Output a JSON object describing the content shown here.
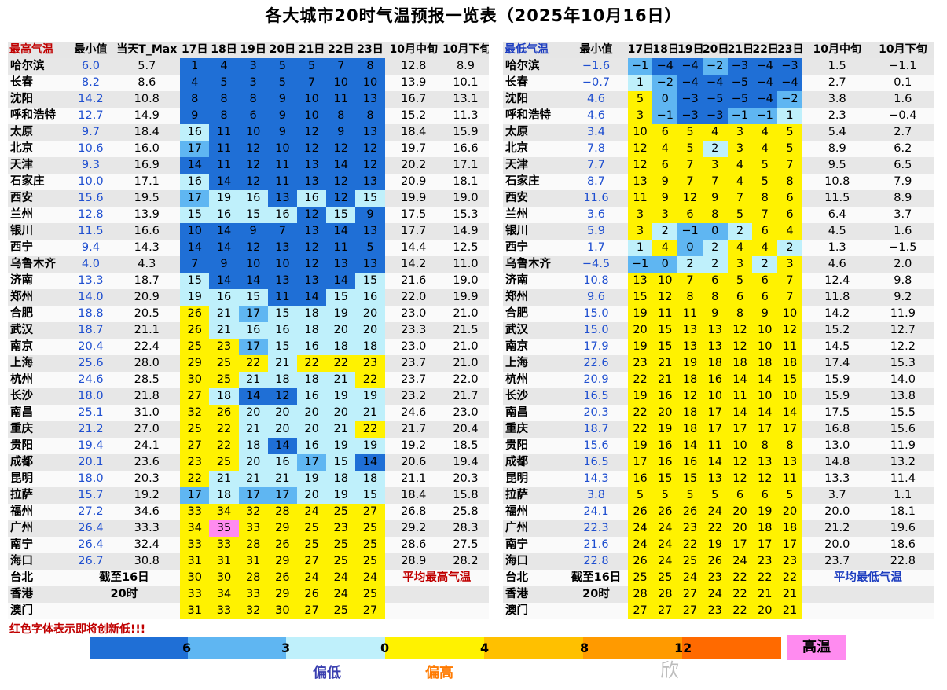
{
  "title": "各大城市20时气温预报一览表（2025年10月16日）",
  "chart_data": {
    "type": "table",
    "title": "各大城市20时气温预报一览表（2025年10月16日）",
    "max_table": {
      "headers": [
        "最高气温",
        "最小值",
        "当天T_Max",
        "17日",
        "18日",
        "19日",
        "20日",
        "21日",
        "22日",
        "23日",
        "10月中旬",
        "10月下旬"
      ],
      "rows": [
        {
          "city": "哈尔滨",
          "min": "6.0",
          "today": "5.7",
          "d": [
            1,
            4,
            3,
            5,
            5,
            7,
            8
          ],
          "mid": "12.8",
          "late": "8.9"
        },
        {
          "city": "长春",
          "min": "8.2",
          "today": "8.6",
          "d": [
            4,
            5,
            3,
            5,
            7,
            10,
            10
          ],
          "mid": "13.9",
          "late": "10.1"
        },
        {
          "city": "沈阳",
          "min": "14.2",
          "today": "10.8",
          "d": [
            8,
            8,
            8,
            9,
            10,
            11,
            13
          ],
          "mid": "16.7",
          "late": "13.1"
        },
        {
          "city": "呼和浩特",
          "min": "12.7",
          "today": "14.9",
          "d": [
            9,
            8,
            6,
            9,
            10,
            8,
            8
          ],
          "mid": "15.2",
          "late": "11.3"
        },
        {
          "city": "太原",
          "min": "9.7",
          "today": "18.4",
          "d": [
            16,
            11,
            10,
            9,
            12,
            9,
            13
          ],
          "mid": "18.4",
          "late": "15.9"
        },
        {
          "city": "北京",
          "min": "10.6",
          "today": "16.0",
          "d": [
            17,
            11,
            12,
            10,
            12,
            12,
            12
          ],
          "mid": "19.7",
          "late": "16.6"
        },
        {
          "city": "天津",
          "min": "9.3",
          "today": "16.9",
          "d": [
            14,
            11,
            12,
            11,
            13,
            14,
            12
          ],
          "mid": "20.2",
          "late": "17.1"
        },
        {
          "city": "石家庄",
          "min": "10.0",
          "today": "17.1",
          "d": [
            16,
            14,
            12,
            11,
            13,
            12,
            13
          ],
          "mid": "20.9",
          "late": "18.1"
        },
        {
          "city": "西安",
          "min": "15.6",
          "today": "19.5",
          "d": [
            17,
            19,
            16,
            13,
            16,
            12,
            15
          ],
          "mid": "19.9",
          "late": "19.0"
        },
        {
          "city": "兰州",
          "min": "12.8",
          "today": "13.9",
          "d": [
            15,
            16,
            15,
            16,
            12,
            15,
            9
          ],
          "mid": "17.5",
          "late": "15.3"
        },
        {
          "city": "银川",
          "min": "11.5",
          "today": "16.6",
          "d": [
            10,
            14,
            9,
            7,
            13,
            14,
            13
          ],
          "mid": "17.7",
          "late": "14.9"
        },
        {
          "city": "西宁",
          "min": "9.4",
          "today": "14.3",
          "d": [
            14,
            14,
            12,
            13,
            12,
            11,
            5
          ],
          "mid": "14.4",
          "late": "12.5"
        },
        {
          "city": "乌鲁木齐",
          "min": "4.0",
          "today": "4.3",
          "d": [
            7,
            9,
            10,
            10,
            12,
            13,
            13
          ],
          "mid": "14.2",
          "late": "11.0"
        },
        {
          "city": "济南",
          "min": "13.3",
          "today": "18.7",
          "d": [
            15,
            14,
            14,
            13,
            13,
            14,
            15
          ],
          "mid": "21.6",
          "late": "19.0"
        },
        {
          "city": "郑州",
          "min": "14.0",
          "today": "20.9",
          "d": [
            19,
            16,
            15,
            11,
            14,
            15,
            16
          ],
          "mid": "22.0",
          "late": "19.9"
        },
        {
          "city": "合肥",
          "min": "18.8",
          "today": "20.5",
          "d": [
            26,
            21,
            17,
            15,
            18,
            19,
            20
          ],
          "mid": "23.0",
          "late": "21.0"
        },
        {
          "city": "武汉",
          "min": "18.7",
          "today": "21.1",
          "d": [
            26,
            21,
            16,
            16,
            18,
            20,
            20
          ],
          "mid": "23.3",
          "late": "21.5"
        },
        {
          "city": "南京",
          "min": "20.4",
          "today": "22.4",
          "d": [
            25,
            23,
            17,
            15,
            16,
            18,
            18
          ],
          "mid": "23.0",
          "late": "21.0"
        },
        {
          "city": "上海",
          "min": "25.6",
          "today": "28.0",
          "d": [
            29,
            25,
            22,
            21,
            22,
            22,
            23
          ],
          "mid": "23.7",
          "late": "21.0"
        },
        {
          "city": "杭州",
          "min": "24.6",
          "today": "28.5",
          "d": [
            30,
            25,
            21,
            18,
            18,
            21,
            22
          ],
          "mid": "23.7",
          "late": "22.0"
        },
        {
          "city": "长沙",
          "min": "18.0",
          "today": "21.8",
          "d": [
            27,
            18,
            14,
            12,
            16,
            19,
            19
          ],
          "mid": "23.2",
          "late": "21.7"
        },
        {
          "city": "南昌",
          "min": "25.1",
          "today": "31.0",
          "d": [
            32,
            26,
            20,
            20,
            20,
            20,
            21
          ],
          "mid": "24.6",
          "late": "23.0"
        },
        {
          "city": "重庆",
          "min": "21.2",
          "today": "27.0",
          "d": [
            25,
            22,
            21,
            20,
            20,
            21,
            22
          ],
          "mid": "21.7",
          "late": "20.4"
        },
        {
          "city": "贵阳",
          "min": "19.4",
          "today": "24.1",
          "d": [
            27,
            22,
            18,
            14,
            16,
            19,
            19
          ],
          "mid": "19.2",
          "late": "18.5"
        },
        {
          "city": "成都",
          "min": "20.1",
          "today": "23.6",
          "d": [
            23,
            25,
            20,
            16,
            17,
            15,
            14
          ],
          "mid": "20.6",
          "late": "19.4"
        },
        {
          "city": "昆明",
          "min": "18.0",
          "today": "20.3",
          "d": [
            22,
            21,
            21,
            21,
            19,
            18,
            18
          ],
          "mid": "21.1",
          "late": "20.3"
        },
        {
          "city": "拉萨",
          "min": "15.7",
          "today": "19.2",
          "d": [
            17,
            18,
            17,
            17,
            20,
            19,
            15
          ],
          "mid": "18.4",
          "late": "15.8"
        },
        {
          "city": "福州",
          "min": "27.2",
          "today": "34.6",
          "d": [
            33,
            34,
            32,
            28,
            24,
            25,
            27
          ],
          "mid": "26.8",
          "late": "25.8"
        },
        {
          "city": "广州",
          "min": "26.4",
          "today": "33.3",
          "d": [
            34,
            35,
            33,
            29,
            25,
            23,
            25
          ],
          "mid": "29.2",
          "late": "28.3"
        },
        {
          "city": "南宁",
          "min": "26.4",
          "today": "32.4",
          "d": [
            33,
            33,
            28,
            26,
            25,
            25,
            25
          ],
          "mid": "28.6",
          "late": "27.5"
        },
        {
          "city": "海口",
          "min": "26.7",
          "today": "30.8",
          "d": [
            31,
            31,
            31,
            29,
            27,
            25,
            25
          ],
          "mid": "28.9",
          "late": "28.2"
        },
        {
          "city": "台北",
          "min": "",
          "today": "",
          "d": [
            30,
            30,
            28,
            26,
            24,
            24,
            24
          ],
          "mid": "",
          "late": ""
        },
        {
          "city": "香港",
          "min": "",
          "today": "",
          "d": [
            33,
            34,
            33,
            29,
            26,
            24,
            25
          ],
          "mid": "",
          "late": ""
        },
        {
          "city": "澳门",
          "min": "",
          "today": "",
          "d": [
            31,
            33,
            32,
            30,
            27,
            25,
            27
          ],
          "mid": "",
          "late": ""
        }
      ]
    },
    "min_table": {
      "headers": [
        "最低气温",
        "最小值",
        "17日",
        "18日",
        "19日",
        "20日",
        "21日",
        "22日",
        "23日",
        "10月中旬",
        "10月下旬"
      ],
      "rows": [
        {
          "city": "哈尔滨",
          "min": "-1.6",
          "d": [
            -1,
            -4,
            -4,
            -2,
            -3,
            -4,
            -3
          ],
          "mid": "1.5",
          "late": "-1.1"
        },
        {
          "city": "长春",
          "min": "-0.7",
          "d": [
            1,
            -2,
            -4,
            -4,
            -5,
            -4,
            -4
          ],
          "mid": "2.7",
          "late": "0.1"
        },
        {
          "city": "沈阳",
          "min": "4.6",
          "d": [
            5,
            0,
            -3,
            -5,
            -5,
            -4,
            -2
          ],
          "mid": "3.8",
          "late": "1.6"
        },
        {
          "city": "呼和浩特",
          "min": "4.6",
          "d": [
            3,
            -1,
            -3,
            -3,
            -1,
            -1,
            1
          ],
          "mid": "2.3",
          "late": "-0.4"
        },
        {
          "city": "太原",
          "min": "3.4",
          "d": [
            10,
            6,
            5,
            4,
            3,
            4,
            5
          ],
          "mid": "5.4",
          "late": "2.7"
        },
        {
          "city": "北京",
          "min": "7.8",
          "d": [
            12,
            4,
            5,
            2,
            3,
            4,
            5
          ],
          "mid": "8.9",
          "late": "6.2"
        },
        {
          "city": "天津",
          "min": "7.7",
          "d": [
            12,
            6,
            7,
            3,
            4,
            5,
            7
          ],
          "mid": "9.5",
          "late": "6.5"
        },
        {
          "city": "石家庄",
          "min": "8.7",
          "d": [
            13,
            9,
            7,
            7,
            4,
            5,
            8
          ],
          "mid": "10.8",
          "late": "7.9"
        },
        {
          "city": "西安",
          "min": "11.6",
          "d": [
            11,
            9,
            12,
            9,
            7,
            8,
            6
          ],
          "mid": "11.5",
          "late": "8.9"
        },
        {
          "city": "兰州",
          "min": "3.6",
          "d": [
            3,
            3,
            6,
            8,
            5,
            7,
            6
          ],
          "mid": "6.4",
          "late": "3.7"
        },
        {
          "city": "银川",
          "min": "5.9",
          "d": [
            3,
            2,
            -1,
            0,
            2,
            6,
            4
          ],
          "mid": "4.5",
          "late": "1.6"
        },
        {
          "city": "西宁",
          "min": "1.7",
          "d": [
            1,
            4,
            0,
            2,
            4,
            4,
            2
          ],
          "mid": "1.3",
          "late": "-1.5"
        },
        {
          "city": "乌鲁木齐",
          "min": "-4.5",
          "d": [
            -1,
            0,
            2,
            2,
            3,
            2,
            3
          ],
          "mid": "4.6",
          "late": "2.0"
        },
        {
          "city": "济南",
          "min": "10.8",
          "d": [
            13,
            10,
            7,
            6,
            5,
            6,
            7
          ],
          "mid": "12.4",
          "late": "9.8"
        },
        {
          "city": "郑州",
          "min": "9.6",
          "d": [
            15,
            12,
            8,
            8,
            6,
            6,
            7
          ],
          "mid": "11.8",
          "late": "9.2"
        },
        {
          "city": "合肥",
          "min": "15.0",
          "d": [
            19,
            11,
            11,
            9,
            8,
            9,
            10
          ],
          "mid": "14.2",
          "late": "11.9"
        },
        {
          "city": "武汉",
          "min": "15.0",
          "d": [
            20,
            15,
            13,
            13,
            12,
            10,
            12
          ],
          "mid": "15.2",
          "late": "12.7"
        },
        {
          "city": "南京",
          "min": "17.9",
          "d": [
            19,
            15,
            13,
            13,
            12,
            10,
            11
          ],
          "mid": "14.5",
          "late": "12.2"
        },
        {
          "city": "上海",
          "min": "22.6",
          "d": [
            23,
            21,
            19,
            18,
            18,
            18,
            18
          ],
          "mid": "17.4",
          "late": "15.3"
        },
        {
          "city": "杭州",
          "min": "20.9",
          "d": [
            22,
            21,
            18,
            16,
            14,
            14,
            15
          ],
          "mid": "15.9",
          "late": "14.0"
        },
        {
          "city": "长沙",
          "min": "16.5",
          "d": [
            19,
            16,
            12,
            10,
            11,
            10,
            10
          ],
          "mid": "15.9",
          "late": "13.8"
        },
        {
          "city": "南昌",
          "min": "20.3",
          "d": [
            22,
            20,
            18,
            17,
            14,
            14,
            14
          ],
          "mid": "17.5",
          "late": "15.5"
        },
        {
          "city": "重庆",
          "min": "18.7",
          "d": [
            22,
            19,
            18,
            17,
            17,
            17,
            17
          ],
          "mid": "16.8",
          "late": "15.6"
        },
        {
          "city": "贵阳",
          "min": "15.6",
          "d": [
            19,
            16,
            14,
            11,
            10,
            8,
            8
          ],
          "mid": "13.0",
          "late": "11.9"
        },
        {
          "city": "成都",
          "min": "16.5",
          "d": [
            17,
            16,
            16,
            14,
            12,
            13,
            13
          ],
          "mid": "14.8",
          "late": "13.2"
        },
        {
          "city": "昆明",
          "min": "14.3",
          "d": [
            16,
            15,
            15,
            13,
            12,
            12,
            11
          ],
          "mid": "13.3",
          "late": "11.4"
        },
        {
          "city": "拉萨",
          "min": "3.8",
          "d": [
            5,
            5,
            5,
            5,
            6,
            6,
            5
          ],
          "mid": "3.7",
          "late": "1.1"
        },
        {
          "city": "福州",
          "min": "24.1",
          "d": [
            26,
            26,
            26,
            24,
            20,
            19,
            20
          ],
          "mid": "20.0",
          "late": "18.1"
        },
        {
          "city": "广州",
          "min": "22.3",
          "d": [
            24,
            24,
            23,
            22,
            20,
            18,
            18
          ],
          "mid": "21.2",
          "late": "19.6"
        },
        {
          "city": "南宁",
          "min": "21.6",
          "d": [
            24,
            24,
            22,
            19,
            17,
            17,
            17
          ],
          "mid": "20.0",
          "late": "18.6"
        },
        {
          "city": "海口",
          "min": "22.8",
          "d": [
            26,
            24,
            25,
            26,
            24,
            23,
            23
          ],
          "mid": "23.7",
          "late": "22.8"
        },
        {
          "city": "台北",
          "min": "",
          "d": [
            25,
            25,
            24,
            23,
            22,
            22,
            22
          ],
          "mid": "",
          "late": ""
        },
        {
          "city": "香港",
          "min": "",
          "d": [
            28,
            28,
            27,
            24,
            22,
            21,
            21
          ],
          "mid": "",
          "late": ""
        },
        {
          "city": "澳门",
          "min": "",
          "d": [
            27,
            27,
            27,
            23,
            22,
            20,
            21
          ],
          "mid": "",
          "late": ""
        }
      ]
    }
  },
  "annotations": {
    "as_of_label": "截至16日",
    "time_label": "20时",
    "avg_max_label": "平均最高气温",
    "avg_min_label": "平均最低气温",
    "red_note": "红色字体表示即将创新低!!!"
  },
  "legend": {
    "ticks": [
      "6",
      "3",
      "0",
      "4",
      "8",
      "12"
    ],
    "hot_label": "高温",
    "low_label": "偏低",
    "high_label": "偏高",
    "colors": {
      "deep_blue": "#1f6fd6",
      "mid_blue": "#5fb6f2",
      "light_blue": "#bff0fb",
      "yellow": "#fff200",
      "gold": "#ffc000",
      "orange": "#ff9a00",
      "deep_orange": "#ff6a00",
      "pink": "#ff8bf0",
      "red_text": "#c00000",
      "blue_text": "#1f4fd0"
    }
  },
  "watermark": "欣"
}
